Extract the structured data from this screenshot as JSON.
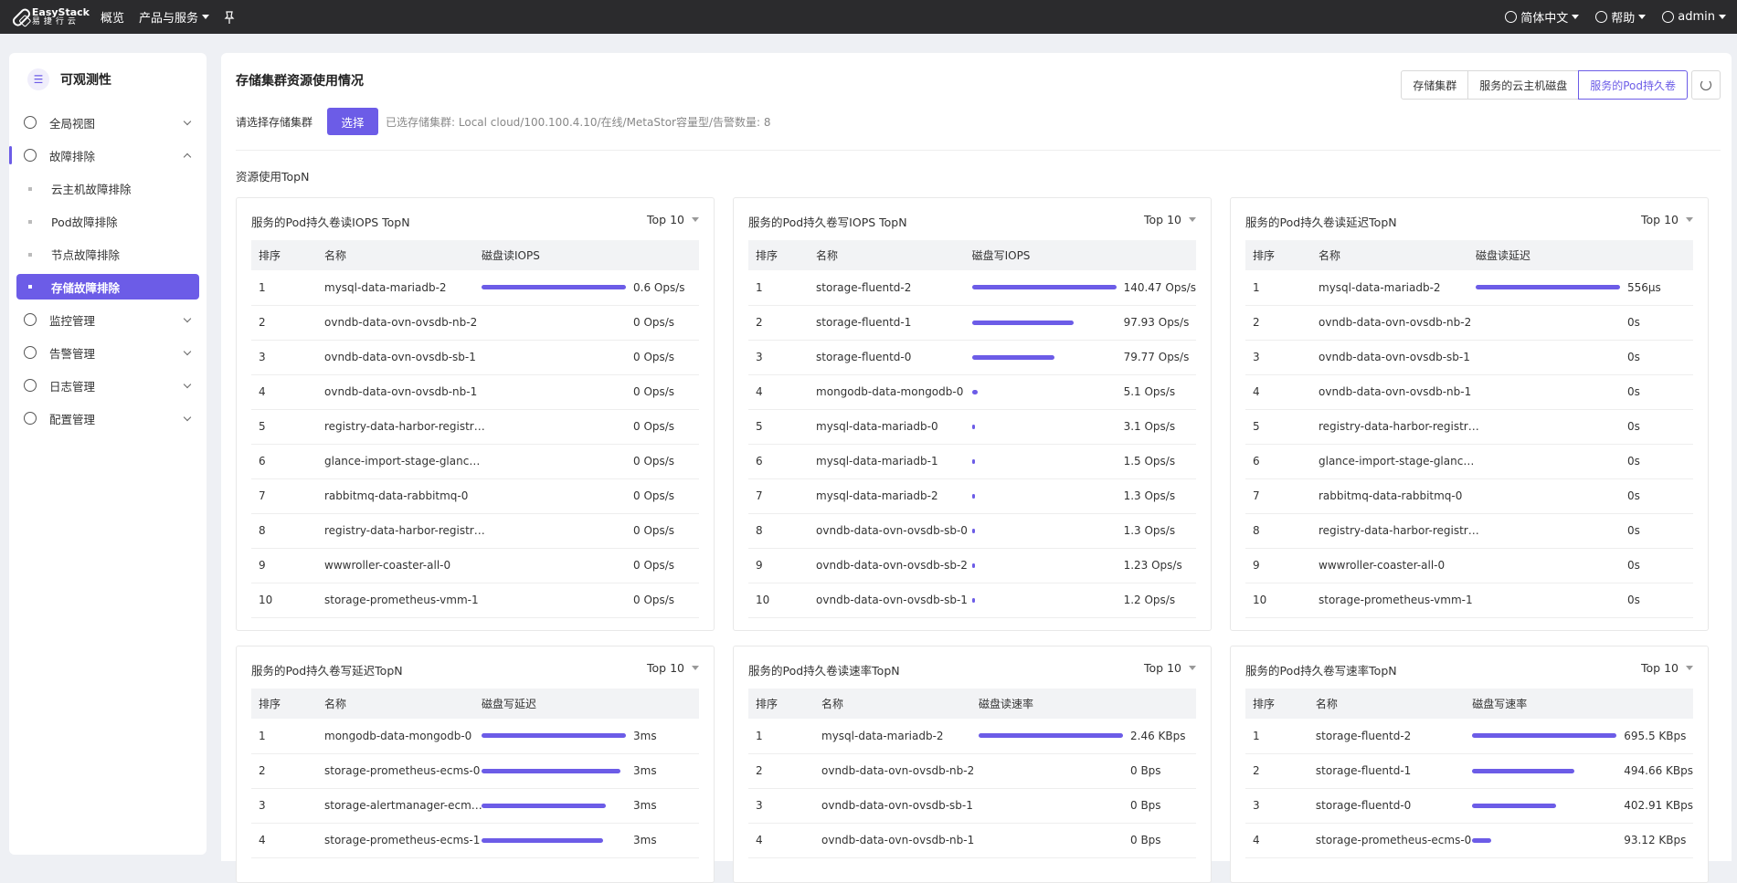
{
  "topbar": {
    "logo_line1": "EasyStack",
    "logo_line2": "易捷行云",
    "nav": [
      "概览",
      "产品与服务"
    ],
    "language": "简体中文",
    "help": "帮助",
    "user": "admin"
  },
  "sidebar": {
    "title": "可观测性",
    "title_icon": "list-icon",
    "menu": {
      "global_view": "全局视图",
      "fault": "故障排除",
      "fault_sub": [
        "云主机故障排除",
        "Pod故障排除",
        "节点故障排除",
        "存储故障排除"
      ],
      "monitor": "监控管理",
      "alarm": "告警管理",
      "log": "日志管理",
      "config": "配置管理"
    }
  },
  "main": {
    "title": "存储集群资源使用情况",
    "tabs": [
      "存储集群",
      "服务的云主机磁盘",
      "服务的Pod持久卷"
    ],
    "active_tab": "服务的Pod持久卷",
    "select_label": "请选择存储集群",
    "select_button": "选择",
    "selected_info": "已选存储集群: Local cloud/100.100.4.10/在线/MetaStor容量型/告警数量: 8",
    "section_label": "资源使用TopN",
    "accent_color": "#6c5ce7"
  },
  "cards": [
    {
      "title": "服务的Pod持久卷读IOPS TopN",
      "topn": "Top 10",
      "headers": [
        "排序",
        "名称",
        "磁盘读IOPS"
      ],
      "rows": [
        {
          "rank": "1",
          "name": "mysql-data-mariadb-2",
          "value": "0.6 Ops/s",
          "fill": 1.0
        },
        {
          "rank": "2",
          "name": "ovndb-data-ovn-ovsdb-nb-2",
          "value": "0 Ops/s",
          "fill": 0
        },
        {
          "rank": "3",
          "name": "ovndb-data-ovn-ovsdb-sb-1",
          "value": "0 Ops/s",
          "fill": 0
        },
        {
          "rank": "4",
          "name": "ovndb-data-ovn-ovsdb-nb-1",
          "value": "0 Ops/s",
          "fill": 0
        },
        {
          "rank": "5",
          "name": "registry-data-harbor-registr…",
          "value": "0 Ops/s",
          "fill": 0
        },
        {
          "rank": "6",
          "name": "glance-import-stage-glanc…",
          "value": "0 Ops/s",
          "fill": 0
        },
        {
          "rank": "7",
          "name": "rabbitmq-data-rabbitmq-0",
          "value": "0 Ops/s",
          "fill": 0
        },
        {
          "rank": "8",
          "name": "registry-data-harbor-registr…",
          "value": "0 Ops/s",
          "fill": 0
        },
        {
          "rank": "9",
          "name": "wwwroller-coaster-all-0",
          "value": "0 Ops/s",
          "fill": 0
        },
        {
          "rank": "10",
          "name": "storage-prometheus-vmm-1",
          "value": "0 Ops/s",
          "fill": 0
        }
      ]
    },
    {
      "title": "服务的Pod持久卷写IOPS TopN",
      "topn": "Top 10",
      "headers": [
        "排序",
        "名称",
        "磁盘写IOPS"
      ],
      "rows": [
        {
          "rank": "1",
          "name": "storage-fluentd-2",
          "value": "140.47 Ops/s",
          "fill": 1.0
        },
        {
          "rank": "2",
          "name": "storage-fluentd-1",
          "value": "97.93 Ops/s",
          "fill": 0.7
        },
        {
          "rank": "3",
          "name": "storage-fluentd-0",
          "value": "79.77 Ops/s",
          "fill": 0.57
        },
        {
          "rank": "4",
          "name": "mongodb-data-mongodb-0",
          "value": "5.1 Ops/s",
          "fill": 0.036
        },
        {
          "rank": "5",
          "name": "mysql-data-mariadb-0",
          "value": "3.1 Ops/s",
          "fill": 0.022
        },
        {
          "rank": "6",
          "name": "mysql-data-mariadb-1",
          "value": "1.5 Ops/s",
          "fill": 0.011
        },
        {
          "rank": "7",
          "name": "mysql-data-mariadb-2",
          "value": "1.3 Ops/s",
          "fill": 0.009
        },
        {
          "rank": "8",
          "name": "ovndb-data-ovn-ovsdb-sb-0",
          "value": "1.3 Ops/s",
          "fill": 0.009
        },
        {
          "rank": "9",
          "name": "ovndb-data-ovn-ovsdb-sb-2",
          "value": "1.23 Ops/s",
          "fill": 0.009
        },
        {
          "rank": "10",
          "name": "ovndb-data-ovn-ovsdb-sb-1",
          "value": "1.2 Ops/s",
          "fill": 0.009
        }
      ]
    },
    {
      "title": "服务的Pod持久卷读延迟TopN",
      "topn": "Top 10",
      "headers": [
        "排序",
        "名称",
        "磁盘读延迟"
      ],
      "rows": [
        {
          "rank": "1",
          "name": "mysql-data-mariadb-2",
          "value": "556µs",
          "fill": 1.0
        },
        {
          "rank": "2",
          "name": "ovndb-data-ovn-ovsdb-nb-2",
          "value": "0s",
          "fill": 0
        },
        {
          "rank": "3",
          "name": "ovndb-data-ovn-ovsdb-sb-1",
          "value": "0s",
          "fill": 0
        },
        {
          "rank": "4",
          "name": "ovndb-data-ovn-ovsdb-nb-1",
          "value": "0s",
          "fill": 0
        },
        {
          "rank": "5",
          "name": "registry-data-harbor-registr…",
          "value": "0s",
          "fill": 0
        },
        {
          "rank": "6",
          "name": "glance-import-stage-glanc…",
          "value": "0s",
          "fill": 0
        },
        {
          "rank": "7",
          "name": "rabbitmq-data-rabbitmq-0",
          "value": "0s",
          "fill": 0
        },
        {
          "rank": "8",
          "name": "registry-data-harbor-registr…",
          "value": "0s",
          "fill": 0
        },
        {
          "rank": "9",
          "name": "wwwroller-coaster-all-0",
          "value": "0s",
          "fill": 0
        },
        {
          "rank": "10",
          "name": "storage-prometheus-vmm-1",
          "value": "0s",
          "fill": 0
        }
      ]
    },
    {
      "title": "服务的Pod持久卷写延迟TopN",
      "topn": "Top 10",
      "headers": [
        "排序",
        "名称",
        "磁盘写延迟"
      ],
      "rows": [
        {
          "rank": "1",
          "name": "mongodb-data-mongodb-0",
          "value": "3ms",
          "fill": 1.0
        },
        {
          "rank": "2",
          "name": "storage-prometheus-ecms-0",
          "value": "3ms",
          "fill": 0.96
        },
        {
          "rank": "3",
          "name": "storage-alertmanager-ecm…",
          "value": "3ms",
          "fill": 0.86
        },
        {
          "rank": "4",
          "name": "storage-prometheus-ecms-1",
          "value": "3ms",
          "fill": 0.84
        }
      ]
    },
    {
      "title": "服务的Pod持久卷读速率TopN",
      "topn": "Top 10",
      "headers": [
        "排序",
        "名称",
        "磁盘读速率"
      ],
      "rows": [
        {
          "rank": "1",
          "name": "mysql-data-mariadb-2",
          "value": "2.46 KBps",
          "fill": 1.0
        },
        {
          "rank": "2",
          "name": "ovndb-data-ovn-ovsdb-nb-2",
          "value": "0 Bps",
          "fill": 0
        },
        {
          "rank": "3",
          "name": "ovndb-data-ovn-ovsdb-sb-1",
          "value": "0 Bps",
          "fill": 0
        },
        {
          "rank": "4",
          "name": "ovndb-data-ovn-ovsdb-nb-1",
          "value": "0 Bps",
          "fill": 0
        }
      ]
    },
    {
      "title": "服务的Pod持久卷写速率TopN",
      "topn": "Top 10",
      "headers": [
        "排序",
        "名称",
        "磁盘写速率"
      ],
      "rows": [
        {
          "rank": "1",
          "name": "storage-fluentd-2",
          "value": "695.5 KBps",
          "fill": 1.0
        },
        {
          "rank": "2",
          "name": "storage-fluentd-1",
          "value": "494.66 KBps",
          "fill": 0.71
        },
        {
          "rank": "3",
          "name": "storage-fluentd-0",
          "value": "402.91 KBps",
          "fill": 0.58
        },
        {
          "rank": "4",
          "name": "storage-prometheus-ecms-0",
          "value": "93.12 KBps",
          "fill": 0.13
        }
      ]
    }
  ]
}
